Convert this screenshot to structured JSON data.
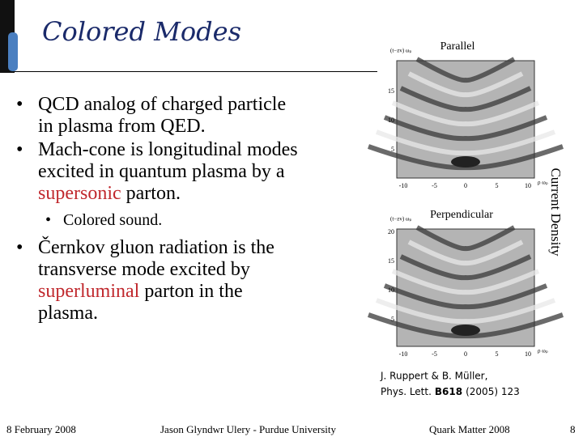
{
  "header": {
    "title": "Colored Modes"
  },
  "bullets": [
    {
      "level": 1,
      "parts": [
        {
          "text": "QCD analog of charged particle in plasma from QED."
        }
      ]
    },
    {
      "level": 1,
      "parts": [
        {
          "text": "Mach-cone is longitudinal modes excited in quantum plasma by a "
        },
        {
          "text": "supersonic",
          "highlight": true
        },
        {
          "text": " parton."
        }
      ]
    },
    {
      "level": 2,
      "parts": [
        {
          "text": "Colored sound."
        }
      ]
    },
    {
      "level": 1,
      "parts": [
        {
          "text": "Černkov gluon radiation is the transverse mode excited by "
        },
        {
          "text": "superluminal",
          "highlight": true
        },
        {
          "text": " parton in the plasma."
        }
      ]
    }
  ],
  "figure": {
    "side_label": "Current Density",
    "panels": [
      {
        "label": "Parallel",
        "y_axis_label": "(t−zv) ωₚ",
        "x_axis_label": "ρ ωₚ",
        "yticks": [
          15,
          10,
          5
        ],
        "xticks": [
          -10,
          -5,
          0,
          5,
          10
        ]
      },
      {
        "label": "Perpendicular",
        "y_axis_label": "(t−zv) ωₚ",
        "x_axis_label": "ρ ωₚ",
        "yticks": [
          20,
          15,
          10,
          5
        ],
        "xticks": [
          -10,
          -5,
          0,
          5,
          10
        ]
      }
    ],
    "citation": [
      "J. Ruppert & B. Müller,",
      "Phys. Lett.",
      "B618",
      "(2005) 123"
    ]
  },
  "footer": {
    "date": "8 February 2008",
    "author": "Jason Glyndwr Ulery - Purdue University",
    "event": "Quark Matter 2008",
    "page": "8"
  }
}
